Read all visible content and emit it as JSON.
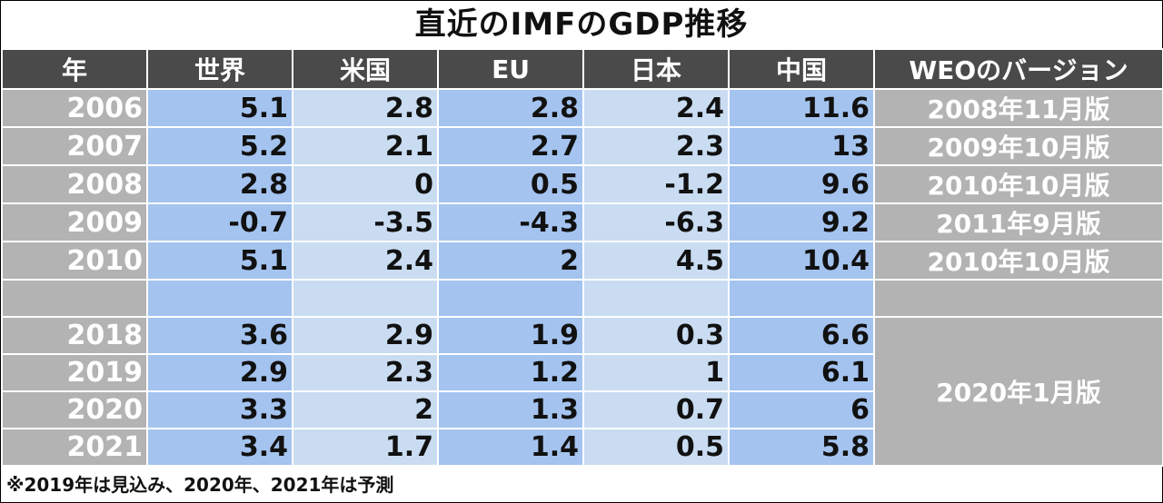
{
  "title": "直近のIMFのGDP推移",
  "headers": [
    "年",
    "世界",
    "米国",
    "EU",
    "日本",
    "中国",
    "WEOのバージョン"
  ],
  "rows": [
    {
      "year": "2006",
      "world": "5.1",
      "us": "2.8",
      "eu": "2.8",
      "japan": "2.4",
      "china": "11.6",
      "weo": "2008年11月版"
    },
    {
      "year": "2007",
      "world": "5.2",
      "us": "2.1",
      "eu": "2.7",
      "japan": "2.3",
      "china": "13",
      "weo": "2009年10月版"
    },
    {
      "year": "2008",
      "world": "2.8",
      "us": "0",
      "eu": "0.5",
      "japan": "-1.2",
      "china": "9.6",
      "weo": "2010年10月版"
    },
    {
      "year": "2009",
      "world": "-0.7",
      "us": "-3.5",
      "eu": "-4.3",
      "japan": "-6.3",
      "china": "9.2",
      "weo": "2011年9月版"
    },
    {
      "year": "2010",
      "world": "5.1",
      "us": "2.4",
      "eu": "2",
      "japan": "4.5",
      "china": "10.4",
      "weo": "2010年10月版"
    },
    {
      "year": "2018",
      "world": "3.6",
      "us": "2.9",
      "eu": "1.9",
      "japan": "0.3",
      "china": "6.6"
    },
    {
      "year": "2019",
      "world": "2.9",
      "us": "2.3",
      "eu": "1.2",
      "japan": "1",
      "china": "6.1"
    },
    {
      "year": "2020",
      "world": "3.3",
      "us": "2",
      "eu": "1.3",
      "japan": "0.7",
      "china": "6"
    },
    {
      "year": "2021",
      "world": "3.4",
      "us": "1.7",
      "eu": "1.4",
      "japan": "0.5",
      "china": "5.8"
    }
  ],
  "weo_merged": "2020年1月版",
  "note": "※2019年は見込み、2020年、2021年は予測",
  "colors": {
    "header_bg": "#4a4a4a",
    "year_bg": "#b3b3b3",
    "col_dark": "#a4c3ef",
    "col_light": "#c9dcf1"
  }
}
